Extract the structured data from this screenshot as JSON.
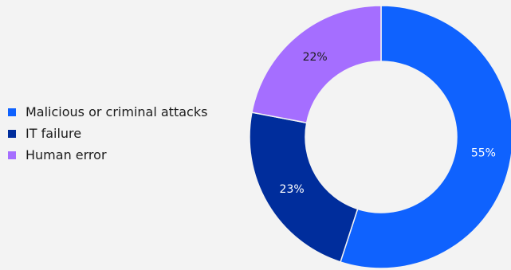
{
  "chart_data": {
    "type": "pie",
    "variant": "donut",
    "categories": [
      "Malicious or criminal attacks",
      "IT failure",
      "Human error"
    ],
    "values": [
      55,
      23,
      22
    ],
    "value_labels": [
      "55%",
      "23%",
      "22%"
    ],
    "colors": [
      "#0f62fe",
      "#002d9c",
      "#a56eff"
    ],
    "label_colors": [
      "#ffffff",
      "#ffffff",
      "#1c1c1c"
    ],
    "legend_position": "left",
    "start_angle_deg": 0,
    "direction": "clockwise"
  }
}
